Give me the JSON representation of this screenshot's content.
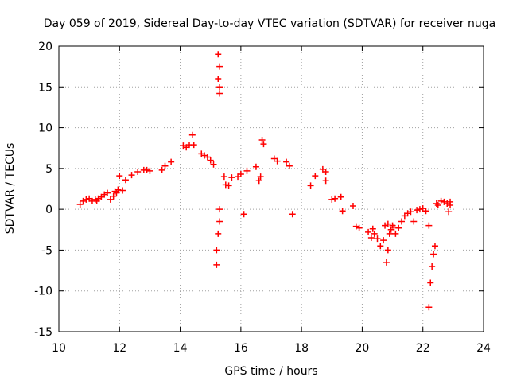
{
  "chart_data": {
    "type": "scatter",
    "title": "Day 059 of 2019, Sidereal Day-to-day VTEC variation (SDTVAR) for receiver nuga",
    "xlabel": "GPS time / hours",
    "ylabel": "SDTVAR / TECUs",
    "xlim": [
      10,
      24
    ],
    "ylim": [
      -15,
      20
    ],
    "xticks": [
      10,
      12,
      14,
      16,
      18,
      20,
      22,
      24
    ],
    "yticks": [
      -15,
      -10,
      -5,
      0,
      5,
      10,
      15,
      20
    ],
    "grid": true,
    "marker": "+",
    "color": "#ff0000",
    "series": [
      {
        "name": "SDTVAR",
        "x": [
          10.7,
          10.8,
          10.9,
          11.0,
          11.1,
          11.2,
          11.25,
          11.3,
          11.4,
          11.5,
          11.6,
          11.7,
          11.8,
          11.85,
          11.9,
          11.95,
          12.0,
          12.1,
          12.2,
          12.4,
          12.6,
          12.8,
          12.9,
          13.0,
          13.4,
          13.5,
          13.7,
          14.1,
          14.2,
          14.3,
          14.4,
          14.45,
          14.7,
          14.8,
          14.9,
          15.0,
          15.1,
          15.2,
          15.2,
          15.25,
          15.25,
          15.25,
          15.3,
          15.3,
          15.3,
          15.3,
          15.3,
          15.45,
          15.5,
          15.6,
          15.7,
          15.9,
          16.0,
          16.1,
          16.2,
          16.5,
          16.6,
          16.65,
          16.7,
          16.75,
          17.1,
          17.2,
          17.5,
          17.6,
          17.7,
          18.3,
          18.45,
          18.7,
          18.8,
          18.8,
          19.0,
          19.1,
          19.3,
          19.35,
          19.7,
          19.8,
          19.9,
          20.2,
          20.3,
          20.35,
          20.4,
          20.5,
          20.6,
          20.7,
          20.75,
          20.8,
          20.85,
          20.85,
          20.9,
          20.95,
          21.0,
          21.05,
          21.1,
          21.2,
          21.3,
          21.4,
          21.5,
          21.6,
          21.7,
          21.8,
          21.9,
          22.0,
          22.1,
          22.2,
          22.2,
          22.25,
          22.3,
          22.35,
          22.4,
          22.45,
          22.5,
          22.6,
          22.7,
          22.8,
          22.85,
          22.9,
          22.9
        ],
        "y": [
          0.6,
          1.0,
          1.2,
          1.3,
          1.0,
          1.2,
          1.0,
          1.3,
          1.5,
          1.8,
          2.0,
          1.2,
          1.6,
          2.2,
          2.0,
          2.4,
          4.1,
          2.3,
          3.6,
          4.2,
          4.6,
          4.8,
          4.8,
          4.7,
          4.8,
          5.3,
          5.8,
          7.8,
          7.6,
          7.9,
          9.1,
          7.9,
          6.8,
          6.6,
          6.4,
          6.0,
          5.5,
          -6.8,
          -5.0,
          -3.0,
          16.0,
          19.0,
          -1.5,
          0.0,
          14.2,
          15.0,
          17.5,
          4.0,
          3.0,
          2.9,
          3.9,
          4.0,
          4.3,
          -0.6,
          4.7,
          5.2,
          3.5,
          4.0,
          8.5,
          8.0,
          6.2,
          5.9,
          5.8,
          5.3,
          -0.6,
          2.9,
          4.1,
          4.9,
          4.6,
          3.5,
          1.2,
          1.3,
          1.5,
          -0.2,
          0.4,
          -2.1,
          -2.3,
          -2.8,
          -3.5,
          -2.4,
          -3.0,
          -3.6,
          -4.5,
          -3.8,
          -2.0,
          -6.5,
          -5.0,
          -1.8,
          -3.0,
          -2.5,
          -2.0,
          -2.2,
          -3.0,
          -2.3,
          -1.5,
          -0.8,
          -0.5,
          -0.3,
          -1.5,
          -0.1,
          0.0,
          0.1,
          -0.2,
          -2.0,
          -12.0,
          -9.0,
          -7.0,
          -5.5,
          -4.5,
          0.7,
          0.5,
          1.0,
          0.9,
          0.7,
          -0.3,
          0.9,
          0.5
        ]
      }
    ]
  }
}
